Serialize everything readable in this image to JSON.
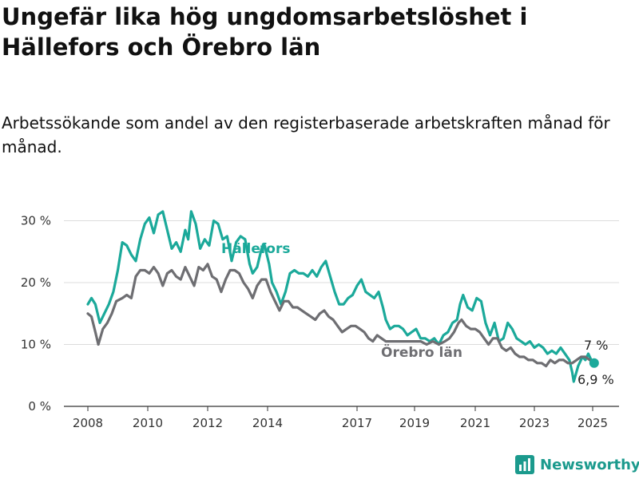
{
  "title": "Ungefär lika hög ungdomsarbetslöshet i Hällefors och Örebro län",
  "subtitle": "Arbetssökande som andel av den registerbaserade arbetskraften månad för månad.",
  "brand": {
    "name": "Newsworthy",
    "icon": "newsworthy-logo-icon",
    "color": "#1b9a8d"
  },
  "colors": {
    "hallefors": "#1ba99a",
    "orebro": "#6e6e72",
    "grid": "#dcdcdc",
    "axis": "#333333"
  },
  "chart_data": {
    "type": "line",
    "title": "Ungefär lika hög ungdomsarbetslöshet i Hällefors och Örebro län",
    "subtitle": "Arbetssökande som andel av den registerbaserade arbetskraften månad för månad.",
    "xlabel": "",
    "ylabel": "",
    "x_ticks": [
      "2008",
      "2010",
      "2012",
      "2014",
      "2017",
      "2019",
      "2021",
      "2023",
      "2025"
    ],
    "y_ticks": [
      0,
      10,
      20,
      30
    ],
    "y_tick_labels": [
      "0 %",
      "10 %",
      "20 %",
      "30 %"
    ],
    "ylim": [
      0,
      34
    ],
    "xlim": [
      2008,
      2025.2
    ],
    "grid": "horizontal",
    "series": [
      {
        "name": "Hällefors",
        "color": "#1ba99a",
        "end_label": "7 %",
        "points": [
          [
            2008.0,
            16.5
          ],
          [
            2008.12,
            17.5
          ],
          [
            2008.25,
            16.5
          ],
          [
            2008.4,
            13.5
          ],
          [
            2008.55,
            15.0
          ],
          [
            2008.7,
            16.5
          ],
          [
            2008.85,
            18.5
          ],
          [
            2009.0,
            22.0
          ],
          [
            2009.15,
            26.5
          ],
          [
            2009.3,
            26.0
          ],
          [
            2009.45,
            24.5
          ],
          [
            2009.6,
            23.5
          ],
          [
            2009.75,
            27.0
          ],
          [
            2009.9,
            29.5
          ],
          [
            2010.05,
            30.5
          ],
          [
            2010.2,
            28.0
          ],
          [
            2010.35,
            31.0
          ],
          [
            2010.5,
            31.5
          ],
          [
            2010.65,
            28.5
          ],
          [
            2010.8,
            25.5
          ],
          [
            2010.95,
            26.5
          ],
          [
            2011.1,
            25.0
          ],
          [
            2011.25,
            28.5
          ],
          [
            2011.35,
            27.0
          ],
          [
            2011.45,
            31.5
          ],
          [
            2011.6,
            29.5
          ],
          [
            2011.75,
            25.5
          ],
          [
            2011.9,
            27.0
          ],
          [
            2012.05,
            26.0
          ],
          [
            2012.2,
            30.0
          ],
          [
            2012.35,
            29.5
          ],
          [
            2012.5,
            27.0
          ],
          [
            2012.65,
            27.5
          ],
          [
            2012.8,
            23.5
          ],
          [
            2012.95,
            26.5
          ],
          [
            2013.1,
            27.5
          ],
          [
            2013.25,
            27.0
          ],
          [
            2013.4,
            23.0
          ],
          [
            2013.5,
            21.5
          ],
          [
            2013.65,
            22.5
          ],
          [
            2013.8,
            25.5
          ],
          [
            2013.9,
            26.0
          ],
          [
            2014.05,
            23.0
          ],
          [
            2014.15,
            20.0
          ],
          [
            2014.3,
            18.5
          ],
          [
            2014.45,
            16.5
          ],
          [
            2014.6,
            18.5
          ],
          [
            2014.75,
            21.5
          ],
          [
            2014.9,
            22.0
          ],
          [
            2015.05,
            21.5
          ],
          [
            2015.2,
            21.5
          ],
          [
            2015.35,
            21.0
          ],
          [
            2015.5,
            22.0
          ],
          [
            2015.65,
            21.0
          ],
          [
            2015.8,
            22.5
          ],
          [
            2015.95,
            23.5
          ],
          [
            2016.1,
            21.0
          ],
          [
            2016.25,
            18.5
          ],
          [
            2016.4,
            16.5
          ],
          [
            2016.55,
            16.5
          ],
          [
            2016.7,
            17.5
          ],
          [
            2016.85,
            18.0
          ],
          [
            2017.0,
            19.5
          ],
          [
            2017.15,
            20.5
          ],
          [
            2017.3,
            18.5
          ],
          [
            2017.45,
            18.0
          ],
          [
            2017.6,
            17.5
          ],
          [
            2017.75,
            18.5
          ],
          [
            2017.9,
            16.0
          ],
          [
            2018.0,
            14.0
          ],
          [
            2018.15,
            12.5
          ],
          [
            2018.3,
            13.0
          ],
          [
            2018.45,
            13.0
          ],
          [
            2018.6,
            12.5
          ],
          [
            2018.75,
            11.5
          ],
          [
            2018.9,
            12.0
          ],
          [
            2019.05,
            12.5
          ],
          [
            2019.2,
            11.0
          ],
          [
            2019.35,
            11.0
          ],
          [
            2019.5,
            10.5
          ],
          [
            2019.65,
            11.0
          ],
          [
            2019.8,
            10.0
          ],
          [
            2019.95,
            11.5
          ],
          [
            2020.1,
            12.0
          ],
          [
            2020.25,
            13.5
          ],
          [
            2020.4,
            14.0
          ],
          [
            2020.5,
            16.5
          ],
          [
            2020.6,
            18.0
          ],
          [
            2020.75,
            16.0
          ],
          [
            2020.9,
            15.5
          ],
          [
            2021.05,
            17.5
          ],
          [
            2021.2,
            17.0
          ],
          [
            2021.35,
            13.5
          ],
          [
            2021.5,
            11.5
          ],
          [
            2021.65,
            13.5
          ],
          [
            2021.8,
            10.5
          ],
          [
            2021.95,
            11.0
          ],
          [
            2022.1,
            13.5
          ],
          [
            2022.25,
            12.5
          ],
          [
            2022.4,
            11.0
          ],
          [
            2022.55,
            10.5
          ],
          [
            2022.7,
            10.0
          ],
          [
            2022.85,
            10.5
          ],
          [
            2023.0,
            9.5
          ],
          [
            2023.15,
            10.0
          ],
          [
            2023.3,
            9.5
          ],
          [
            2023.45,
            8.5
          ],
          [
            2023.6,
            9.0
          ],
          [
            2023.75,
            8.5
          ],
          [
            2023.9,
            9.5
          ],
          [
            2024.05,
            8.5
          ],
          [
            2024.2,
            7.5
          ],
          [
            2024.3,
            5.5
          ],
          [
            2024.35,
            4.0
          ],
          [
            2024.5,
            6.5
          ],
          [
            2024.65,
            8.0
          ],
          [
            2024.75,
            7.5
          ],
          [
            2024.85,
            8.5
          ],
          [
            2024.95,
            7.5
          ],
          [
            2025.05,
            7.0
          ]
        ]
      },
      {
        "name": "Örebro län",
        "color": "#6e6e72",
        "end_label": "6,9 %",
        "points": [
          [
            2008.0,
            15.0
          ],
          [
            2008.12,
            14.5
          ],
          [
            2008.25,
            12.0
          ],
          [
            2008.35,
            10.0
          ],
          [
            2008.5,
            12.5
          ],
          [
            2008.65,
            13.5
          ],
          [
            2008.8,
            15.0
          ],
          [
            2008.95,
            17.0
          ],
          [
            2009.15,
            17.5
          ],
          [
            2009.3,
            18.0
          ],
          [
            2009.45,
            17.5
          ],
          [
            2009.6,
            21.0
          ],
          [
            2009.75,
            22.0
          ],
          [
            2009.9,
            22.0
          ],
          [
            2010.05,
            21.5
          ],
          [
            2010.2,
            22.5
          ],
          [
            2010.35,
            21.5
          ],
          [
            2010.5,
            19.5
          ],
          [
            2010.65,
            21.5
          ],
          [
            2010.8,
            22.0
          ],
          [
            2010.95,
            21.0
          ],
          [
            2011.1,
            20.5
          ],
          [
            2011.25,
            22.5
          ],
          [
            2011.4,
            21.0
          ],
          [
            2011.55,
            19.5
          ],
          [
            2011.7,
            22.5
          ],
          [
            2011.85,
            22.0
          ],
          [
            2012.0,
            23.0
          ],
          [
            2012.15,
            21.0
          ],
          [
            2012.3,
            20.5
          ],
          [
            2012.45,
            18.5
          ],
          [
            2012.6,
            20.5
          ],
          [
            2012.75,
            22.0
          ],
          [
            2012.9,
            22.0
          ],
          [
            2013.05,
            21.5
          ],
          [
            2013.2,
            20.0
          ],
          [
            2013.35,
            19.0
          ],
          [
            2013.5,
            17.5
          ],
          [
            2013.65,
            19.5
          ],
          [
            2013.8,
            20.5
          ],
          [
            2013.95,
            20.5
          ],
          [
            2014.1,
            18.5
          ],
          [
            2014.25,
            17.0
          ],
          [
            2014.4,
            15.5
          ],
          [
            2014.55,
            17.0
          ],
          [
            2014.7,
            17.0
          ],
          [
            2014.85,
            16.0
          ],
          [
            2015.0,
            16.0
          ],
          [
            2015.15,
            15.5
          ],
          [
            2015.3,
            15.0
          ],
          [
            2015.45,
            14.5
          ],
          [
            2015.6,
            14.0
          ],
          [
            2015.75,
            15.0
          ],
          [
            2015.9,
            15.5
          ],
          [
            2016.05,
            14.5
          ],
          [
            2016.2,
            14.0
          ],
          [
            2016.35,
            13.0
          ],
          [
            2016.5,
            12.0
          ],
          [
            2016.65,
            12.5
          ],
          [
            2016.8,
            13.0
          ],
          [
            2016.95,
            13.0
          ],
          [
            2017.1,
            12.5
          ],
          [
            2017.25,
            12.0
          ],
          [
            2017.4,
            11.0
          ],
          [
            2017.55,
            10.5
          ],
          [
            2017.7,
            11.5
          ],
          [
            2017.85,
            11.0
          ],
          [
            2018.0,
            10.5
          ],
          [
            2018.2,
            10.5
          ],
          [
            2018.4,
            10.5
          ],
          [
            2018.6,
            10.5
          ],
          [
            2018.8,
            10.5
          ],
          [
            2019.0,
            10.5
          ],
          [
            2019.2,
            10.5
          ],
          [
            2019.4,
            10.0
          ],
          [
            2019.6,
            10.5
          ],
          [
            2019.8,
            10.0
          ],
          [
            2020.0,
            10.5
          ],
          [
            2020.15,
            11.0
          ],
          [
            2020.3,
            12.0
          ],
          [
            2020.45,
            13.5
          ],
          [
            2020.55,
            14.0
          ],
          [
            2020.7,
            13.0
          ],
          [
            2020.85,
            12.5
          ],
          [
            2021.0,
            12.5
          ],
          [
            2021.15,
            12.0
          ],
          [
            2021.3,
            11.0
          ],
          [
            2021.45,
            10.0
          ],
          [
            2021.6,
            11.0
          ],
          [
            2021.75,
            11.0
          ],
          [
            2021.9,
            9.5
          ],
          [
            2022.05,
            9.0
          ],
          [
            2022.2,
            9.5
          ],
          [
            2022.35,
            8.5
          ],
          [
            2022.5,
            8.0
          ],
          [
            2022.65,
            8.0
          ],
          [
            2022.8,
            7.5
          ],
          [
            2022.95,
            7.5
          ],
          [
            2023.1,
            7.0
          ],
          [
            2023.25,
            7.0
          ],
          [
            2023.4,
            6.5
          ],
          [
            2023.55,
            7.5
          ],
          [
            2023.7,
            7.0
          ],
          [
            2023.85,
            7.5
          ],
          [
            2024.0,
            7.5
          ],
          [
            2024.15,
            7.0
          ],
          [
            2024.3,
            7.0
          ],
          [
            2024.45,
            7.5
          ],
          [
            2024.6,
            8.0
          ],
          [
            2024.75,
            8.0
          ],
          [
            2024.9,
            7.5
          ],
          [
            2025.05,
            6.9
          ]
        ]
      }
    ]
  }
}
